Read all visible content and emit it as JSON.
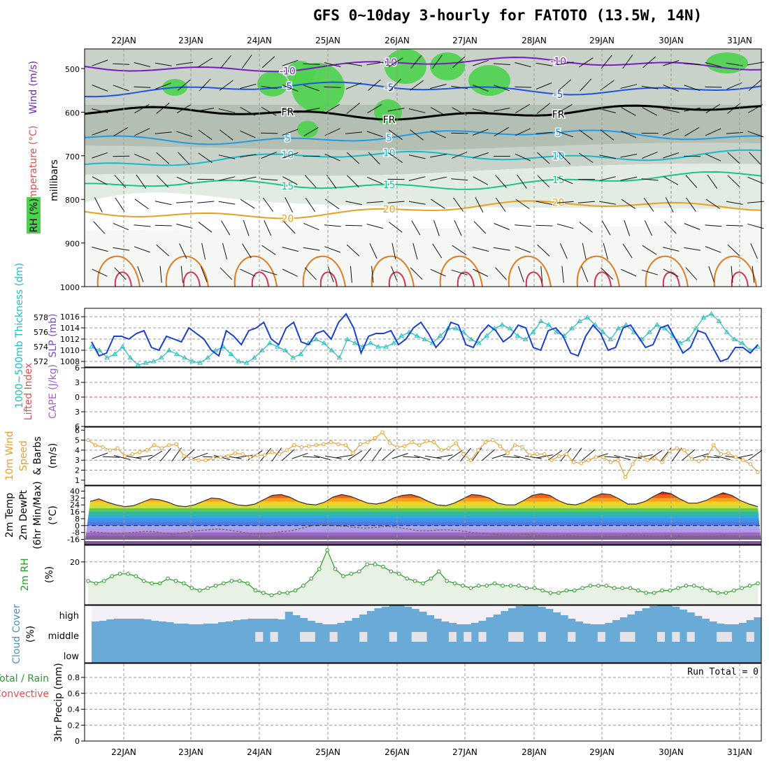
{
  "title": "GFS 0~10day 3-hourly for FATOTO (13.5W, 14N)",
  "dates": [
    "22JAN",
    "23JAN",
    "24JAN",
    "25JAN",
    "26JAN",
    "27JAN",
    "28JAN",
    "29JAN",
    "30JAN",
    "31JAN"
  ],
  "colors": {
    "temp_iso": [
      "#7a1bc4",
      "#1f54e0",
      "#000000",
      "#1e9be8",
      "#1bb8c8",
      "#1bc48a",
      "#e8a020",
      "#e07020",
      "#d83050"
    ],
    "rh_green": "#4cd24c",
    "rh_grey": "#c8d4c8",
    "slp": "#1a3fd0",
    "thickness": "#20c0c0",
    "wind10m": "#e8a030",
    "dewpt": "#8a6a50",
    "rh2m": "#2a9a2a",
    "cloud": "#6aaad6",
    "zero_line": "#e05050"
  },
  "chart_data": [
    {
      "type": "area",
      "panel": "upper-air",
      "ylabel_parts": [
        "Wind (m/s)",
        "Temperature (°C)",
        "RH (%)",
        "millibars"
      ],
      "y_ticks": [
        "500",
        "600",
        "700",
        "800",
        "900",
        "1000"
      ],
      "contour_labels": [
        "10",
        "5",
        "FR",
        "5",
        "10",
        "15",
        "20",
        "-10",
        "-5",
        "FR",
        "-5",
        "10",
        "15",
        "20",
        "-10",
        "-5",
        "FR",
        "-5",
        "50",
        "30",
        "30",
        "10",
        "10",
        "50"
      ],
      "isotherms": [
        {
          "label": "-10",
          "p": 495
        },
        {
          "label": "-5",
          "p": 550
        },
        {
          "label": "FR",
          "p": 605
        },
        {
          "label": "5",
          "p": 660
        },
        {
          "label": "10",
          "p": 715
        },
        {
          "label": "15",
          "p": 775
        },
        {
          "label": "20",
          "p": 835
        }
      ]
    },
    {
      "type": "line",
      "panel": "slp-thickness",
      "ylabel_left": "1000~500mb Thickness (dm)",
      "ylabel_right": "SLP (mb)",
      "thickness_ticks": [
        "572",
        "574",
        "576",
        "578"
      ],
      "slp_ticks": [
        "1008",
        "1010",
        "1012",
        "1014",
        "1016"
      ],
      "series": [
        {
          "name": "SLP (mb)",
          "values": [
            1011.5,
            1009.0,
            1009.5,
            1012.5,
            1012.5,
            1012.0,
            1013.0,
            1013.5,
            1010.5,
            1010.0,
            1012.5,
            1012.0,
            1011.5,
            1014.0,
            1013.0,
            1012.0,
            1010.0,
            1009.0,
            1013.5,
            1012.5,
            1011.0,
            1013.5,
            1014.0,
            1015.0,
            1012.0,
            1011.0,
            1014.0,
            1015.0,
            1011.5,
            1011.0,
            1013.0,
            1013.5,
            1012.0,
            1015.0,
            1016.5,
            1014.0,
            1009.5,
            1012.5,
            1013.0,
            1013.0,
            1013.5,
            1011.0,
            1012.0,
            1014.0,
            1015.0,
            1013.0,
            1010.5,
            1012.0,
            1015.0,
            1014.5,
            1011.0,
            1010.5,
            1013.0,
            1014.5,
            1013.5,
            1011.5,
            1012.5,
            1014.5,
            1014.0,
            1010.5,
            1010.0,
            1013.5,
            1014.0,
            1012.5,
            1009.5,
            1009.0,
            1012.5,
            1014.5,
            1013.0,
            1010.0,
            1010.5,
            1014.0,
            1014.5,
            1012.5,
            1010.5,
            1011.0,
            1014.0,
            1014.5,
            1012.0,
            1009.5,
            1010.5,
            1013.5,
            1013.0,
            1010.5,
            1008.0,
            1008.5,
            1010.5,
            1010.5,
            1009.5,
            1011.0
          ]
        },
        {
          "name": "Thickness (dm)",
          "values": [
            574.0,
            573.5,
            572.5,
            573.0,
            574.0,
            572.5,
            571.5,
            571.8,
            572.0,
            572.5,
            573.5,
            573.0,
            572.5,
            572.0,
            571.8,
            572.5,
            573.5,
            574.0,
            573.0,
            572.0,
            571.8,
            572.5,
            573.5,
            574.5,
            574.0,
            573.5,
            572.5,
            573.0,
            574.5,
            575.0,
            574.5,
            573.5,
            572.5,
            575.0,
            574.5,
            574.0,
            574.5,
            574.0,
            574.0,
            574.5,
            575.5,
            576.0,
            575.5,
            575.0,
            574.5,
            575.5,
            576.5,
            576.5,
            576.0,
            575.0,
            574.5,
            575.5,
            576.5,
            577.0,
            576.5,
            575.5,
            575.0,
            576.0,
            577.5,
            577.0,
            576.0,
            575.5,
            576.5,
            577.5,
            578.0,
            577.0,
            576.0,
            575.0,
            576.5,
            577.0,
            576.0,
            575.0,
            576.0,
            577.0,
            576.5,
            575.5,
            574.5,
            575.0,
            576.5,
            578.0,
            578.5,
            577.5,
            576.0,
            575.0,
            574.5,
            573.5,
            574.0
          ]
        }
      ]
    },
    {
      "type": "line",
      "panel": "stability",
      "ylabel_left": "Lifted Index",
      "ylabel_right": "CAPE (J/kg)",
      "y_ticks": [
        "6",
        "3",
        "0",
        "3",
        "6"
      ],
      "series": [
        {
          "name": "Lifted Index",
          "values": []
        }
      ]
    },
    {
      "type": "line",
      "panel": "wind10m",
      "ylabel_parts": [
        "10m Wind",
        "Speed",
        "& Barbs",
        "(m/s)"
      ],
      "y_ticks": [
        "1",
        "2",
        "3",
        "4",
        "5",
        "6"
      ],
      "series": [
        {
          "name": "10m Wind Speed",
          "values": [
            5.0,
            4.5,
            4.3,
            4.0,
            4.2,
            3.4,
            3.6,
            3.8,
            4.0,
            4.5,
            4.2,
            4.5,
            4.6,
            3.4,
            3.2,
            3.0,
            3.0,
            3.2,
            3.3,
            3.4,
            3.7,
            3.6,
            3.3,
            3.5,
            3.5,
            3.8,
            3.6,
            4.0,
            4.5,
            4.3,
            4.4,
            4.5,
            4.6,
            4.8,
            4.6,
            4.5,
            3.7,
            4.6,
            4.8,
            5.2,
            5.8,
            4.7,
            4.3,
            4.4,
            4.8,
            4.5,
            4.9,
            4.8,
            4.0,
            4.2,
            4.7,
            3.6,
            3.0,
            4.0,
            4.8,
            5.0,
            4.4,
            3.7,
            4.5,
            4.3,
            3.5,
            3.6,
            3.6,
            3.0,
            3.4,
            3.6,
            2.8,
            2.7,
            3.0,
            3.3,
            3.3,
            2.8,
            3.0,
            1.3,
            2.6,
            3.6,
            3.0,
            3.2,
            2.8,
            3.9,
            4.2,
            4.0,
            3.1,
            2.9,
            3.2,
            4.5,
            3.6,
            3.7,
            3.3,
            3.0,
            2.6,
            1.8
          ]
        }
      ]
    },
    {
      "type": "area",
      "panel": "temp2m",
      "ylabel_parts": [
        "2m Temp",
        "2m DewPt",
        "(6hr Min/Max)",
        "(°C)"
      ],
      "y_ticks": [
        "40",
        "32",
        "24",
        "16",
        "8",
        "0",
        "-8",
        "-16"
      ],
      "series": [
        {
          "name": "2m Temp",
          "values": [
            28,
            31,
            27,
            24,
            22,
            23,
            27,
            31,
            30,
            27,
            23,
            22,
            24,
            28,
            32,
            31,
            27,
            24,
            23,
            25,
            30,
            35,
            36,
            33,
            28,
            25,
            24,
            27,
            33,
            36,
            34,
            30,
            26,
            25,
            27,
            32,
            35,
            36,
            33,
            28,
            24,
            23,
            26,
            31,
            36,
            35,
            32,
            26,
            24,
            24,
            29,
            35,
            37,
            35,
            29,
            25,
            24,
            27,
            33,
            37,
            36,
            31,
            25,
            25,
            28,
            34,
            39,
            37,
            31,
            26,
            26,
            29,
            34,
            38,
            35,
            29,
            25,
            22
          ]
        },
        {
          "name": "2m DewPt",
          "values": [
            -7,
            -8,
            -9,
            -9,
            -8,
            -7,
            -7,
            -9,
            -10,
            -8,
            -6,
            -5,
            -4,
            -5,
            -7,
            -9,
            -10,
            -9,
            -7,
            -6,
            -3,
            0,
            1,
            0,
            -1,
            -2,
            -3,
            -2,
            -1,
            -2,
            -4,
            -6,
            -6,
            -5,
            -5,
            -6,
            -8,
            -9,
            -10,
            -11,
            -11,
            -10,
            -11,
            -12,
            -12,
            -11,
            -12,
            -12,
            -12,
            -12,
            -12,
            -11,
            -11,
            -12,
            -12,
            -11,
            -12,
            -12,
            -12,
            -12,
            -11,
            -12,
            -13,
            -12
          ]
        }
      ]
    },
    {
      "type": "area",
      "panel": "rh2m",
      "ylabel_parts": [
        "2m RH",
        "(%)"
      ],
      "y_ticks": [
        "20"
      ],
      "series": [
        {
          "name": "2m RH",
          "values": [
            12,
            11,
            12,
            14,
            15,
            15,
            14,
            12,
            11,
            11,
            13,
            12,
            11,
            9,
            8,
            9,
            10,
            11,
            12,
            12,
            11,
            8,
            7,
            6,
            7,
            7,
            8,
            10,
            13,
            17,
            25,
            17,
            14,
            15,
            16,
            19,
            19,
            18,
            16,
            15,
            13,
            12,
            11,
            13,
            16,
            12,
            11,
            10,
            9,
            10,
            10,
            11,
            10,
            10,
            10,
            9,
            9,
            8,
            7,
            7,
            8,
            8,
            9,
            10,
            10,
            10,
            9,
            9,
            9,
            8,
            7,
            7,
            8,
            8,
            9,
            10,
            10,
            9,
            8,
            7,
            7,
            8,
            9,
            10,
            11
          ]
        }
      ]
    },
    {
      "type": "heatmap",
      "panel": "cloud",
      "ylabel_parts": [
        "Cloud Cover",
        "(%)"
      ],
      "row_labels": [
        "high",
        "middle",
        "low"
      ]
    },
    {
      "type": "bar",
      "panel": "precip",
      "ylabel_parts": [
        "Total / Rain",
        "Convective",
        "3hr Precip (mm)"
      ],
      "y_ticks": [
        "0",
        "0.2",
        "0.4",
        "0.6",
        "0.8"
      ],
      "run_total": "Run Total = 0",
      "values": []
    }
  ]
}
